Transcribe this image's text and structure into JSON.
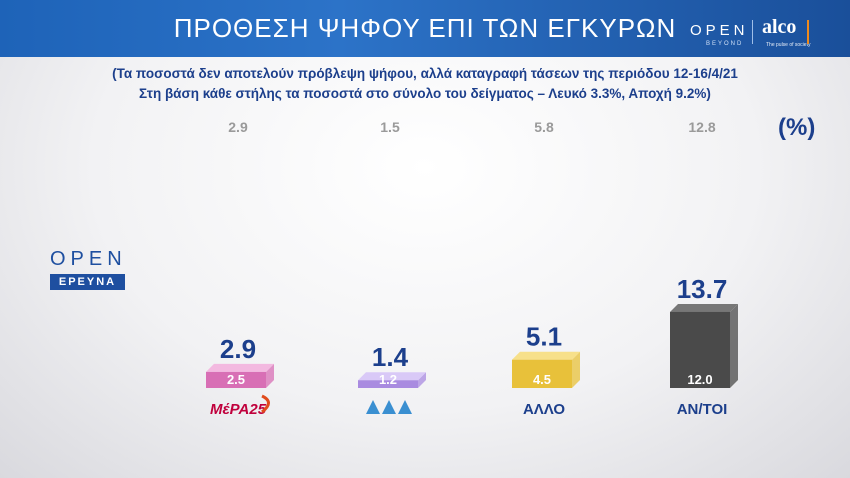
{
  "header": {
    "title": "ΠΡΟΘΕΣΗ ΨΗΦΟΥ ΕΠΙ ΤΩΝ ΕΓΚΥΡΩΝ",
    "brand_open": "OPEN",
    "brand_open_sub": "BEYOND",
    "brand_alco": "alco",
    "brand_alco_sub": "The pulse of society"
  },
  "subtitle": {
    "line1": "(Τα ποσοστά δεν αποτελούν πρόβλεψη ψήφου, αλλά καταγραφή τάσεων της περιόδου 12-16/4/21",
    "line2": "Στη βάση κάθε στήλης τα ποσοστά στο σύνολο του δείγματος – Λευκό 3.3%, Αποχή 9.2%)"
  },
  "unit_label": "(%)",
  "logo": {
    "name": "OPEN",
    "sub": "ΕΡΕΥΝΑ"
  },
  "colors": {
    "header": "#1e63b8",
    "text_blue": "#1c3f8c"
  },
  "chart_data": {
    "type": "bar",
    "categories": [
      "ΜέΡΑ25",
      "ΠΛΕΥΣΗ",
      "ΑΛΛΟ",
      "ΑΝ/ΤΟΙ"
    ],
    "category_labels": [
      "ΜέΡΑ25",
      "",
      "ΑΛΛΟ",
      "ΑΝ/ΤΟΙ"
    ],
    "series": [
      {
        "values": [
          2.9,
          1.4,
          5.1,
          13.7
        ]
      },
      {
        "values": [
          2.5,
          1.2,
          4.5,
          12.0
        ]
      }
    ],
    "previous_values": [
      "2.9",
      "1.5",
      "5.8",
      "12.8"
    ],
    "colors": [
      "#d86fb5",
      "#a98be0",
      "#e8c13a",
      "#4a4a4a"
    ],
    "top_colors": [
      "#f3b9e0",
      "#d9c9f7",
      "#f7e08a",
      "#777777"
    ],
    "ylim": [
      0,
      14
    ]
  }
}
